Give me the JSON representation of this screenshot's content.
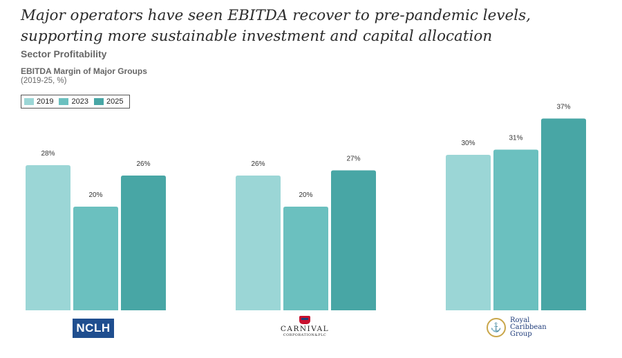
{
  "header": {
    "headline": "Major operators have seen EBITDA recover to pre-pandemic levels, supporting more sustainable investment and capital allocation",
    "section": "Sector Profitability"
  },
  "chart_data": {
    "type": "bar",
    "title": "EBITDA Margin of Major Groups",
    "subtitle": "(2019-25, %)",
    "categories": [
      "NCLH",
      "CARNIVAL CORPORATION & PLC",
      "Royal Caribbean Group"
    ],
    "series": [
      {
        "name": "2019",
        "values": [
          28,
          26,
          30
        ],
        "labels": [
          "28%",
          "26%",
          "30%"
        ],
        "color": "#9bd6d6"
      },
      {
        "name": "2023",
        "values": [
          20,
          20,
          31
        ],
        "labels": [
          "20%",
          "20%",
          "31%"
        ],
        "color": "#6bc0bf"
      },
      {
        "name": "2025",
        "values": [
          26,
          27,
          37
        ],
        "labels": [
          "26%",
          "27%",
          "37%"
        ],
        "color": "#48a6a5"
      }
    ],
    "ylim": [
      0,
      40
    ],
    "grid": false,
    "legend_position": "top-left",
    "xlabel": "",
    "ylabel": ""
  },
  "logos": {
    "nclh": "NCLH",
    "carnival_name": "CARNIVAL",
    "carnival_corp": "CORPORATION&PLC",
    "rcg": "Royal\nCaribbean\nGroup"
  },
  "icons": {
    "carnival": "carnival-funnel-icon",
    "rcg": "crown-anchor-icon"
  }
}
